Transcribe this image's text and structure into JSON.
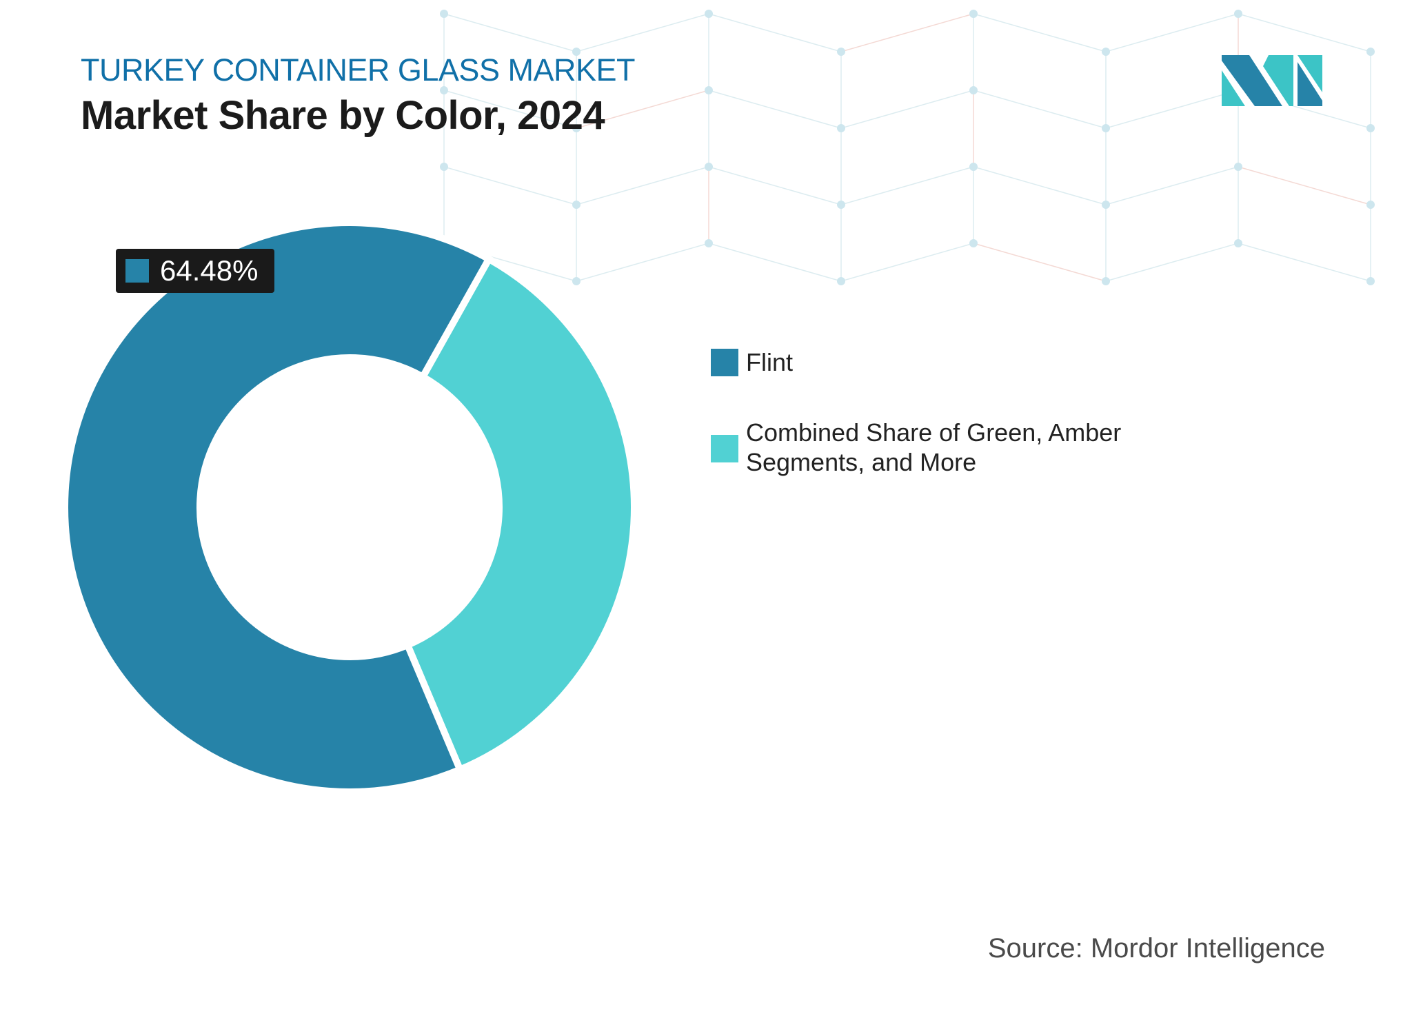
{
  "header": {
    "kicker": "TURKEY CONTAINER GLASS MARKET",
    "title": "Market Share by Color, 2024"
  },
  "chart_data": {
    "type": "pie",
    "variant": "donut",
    "title": "Market Share by Color, 2024",
    "categories": [
      "Flint",
      "Combined Share of Green, Amber Segments, and More"
    ],
    "values": [
      64.48,
      35.52
    ],
    "colors": [
      "#2683a8",
      "#51d1d3"
    ],
    "data_labels": [
      {
        "category": "Flint",
        "text": "64.48%"
      }
    ],
    "legend_position": "right"
  },
  "footer": {
    "source": "Source: Mordor Intelligence"
  },
  "logo": {
    "name": "Mordor Intelligence logo",
    "colors": [
      "#2683a8",
      "#3cc4c6"
    ]
  }
}
